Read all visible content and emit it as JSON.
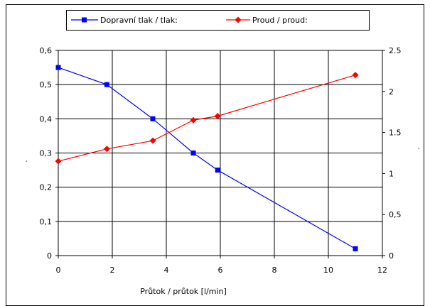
{
  "chart_data": {
    "type": "line",
    "xlabel": "Průtok / průtok [l/min]",
    "ylabel_left": "'",
    "ylabel_right": "'",
    "xlim": [
      0,
      12
    ],
    "ylim_left": [
      0,
      0.6
    ],
    "ylim_right": [
      0,
      2.5
    ],
    "x_ticks": [
      "0",
      "2",
      "4",
      "6",
      "8",
      "10",
      "12"
    ],
    "y_left_ticks": [
      "0",
      "0,1",
      "0,2",
      "0,3",
      "0,4",
      "0,5",
      "0,6"
    ],
    "y_right_ticks": [
      "0",
      "0,5",
      "1",
      "1.5",
      "2",
      "2.5"
    ],
    "grid": true,
    "legend_position": "top",
    "series": [
      {
        "name": "Dopravní tlak / tlak:",
        "axis": "left",
        "color": "#0000ff",
        "marker": "square",
        "x": [
          0,
          1.8,
          3.5,
          5,
          5.9,
          11
        ],
        "y": [
          0.55,
          0.5,
          0.4,
          0.3,
          0.25,
          0.02
        ]
      },
      {
        "name": "Proud / proud:",
        "axis": "right",
        "color": "#ff0000",
        "marker": "diamond",
        "x": [
          0,
          1.8,
          3.5,
          5,
          5.9,
          11
        ],
        "y": [
          1.15,
          1.3,
          1.4,
          1.65,
          1.7,
          2.2
        ]
      }
    ]
  }
}
